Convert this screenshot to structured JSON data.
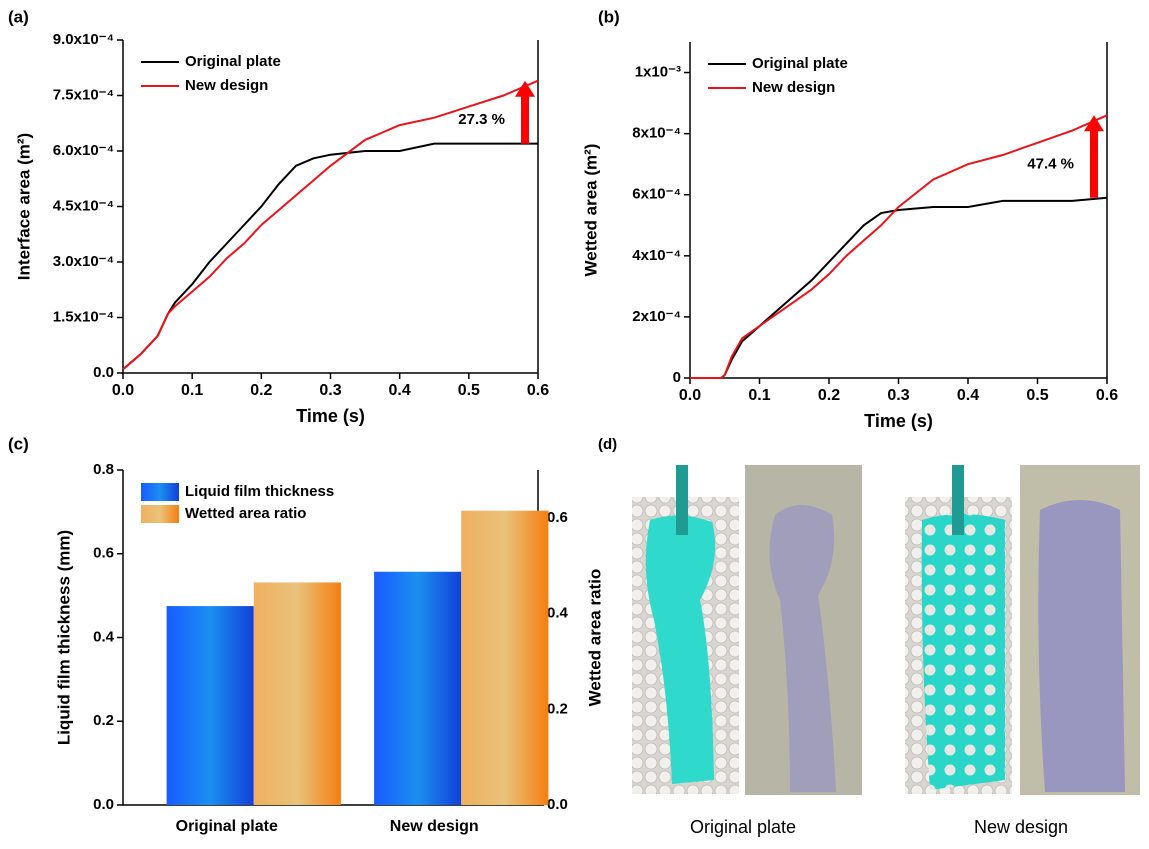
{
  "chart_data": [
    {
      "type": "line",
      "panel_label": "(a)",
      "x_label": "Time (s)",
      "y_label": "Interface area (m²)",
      "annotation": "27.3 %",
      "x": [
        0,
        0.025,
        0.05,
        0.065,
        0.075,
        0.1,
        0.125,
        0.15,
        0.175,
        0.2,
        0.225,
        0.25,
        0.275,
        0.3,
        0.35,
        0.4,
        0.45,
        0.5,
        0.55,
        0.6
      ],
      "series": [
        {
          "name": "Original plate",
          "color": "#000000",
          "values": [
            1e-05,
            5e-05,
            0.0001,
            0.00016,
            0.00019,
            0.00024,
            0.0003,
            0.00035,
            0.0004,
            0.00045,
            0.00051,
            0.00056,
            0.00058,
            0.00059,
            0.0006,
            0.0006,
            0.00062,
            0.00062,
            0.00062,
            0.00062
          ]
        },
        {
          "name": "New design",
          "color": "#e8141b",
          "values": [
            1e-05,
            5e-05,
            0.0001,
            0.00016,
            0.00018,
            0.00022,
            0.00026,
            0.00031,
            0.00035,
            0.0004,
            0.00044,
            0.00048,
            0.00052,
            0.00056,
            0.00063,
            0.00067,
            0.00069,
            0.00072,
            0.00075,
            0.00079
          ]
        }
      ],
      "xlim": [
        0,
        0.6
      ],
      "xticks": [
        {
          "value": 0,
          "label": "0.0"
        },
        0.1,
        0.2,
        0.3,
        0.4,
        0.5,
        0.6
      ],
      "ylim": [
        0,
        0.0009
      ],
      "yticks": [
        {
          "value": 0,
          "label": "0.0"
        },
        {
          "value": 0.00015,
          "label": "1.5x10⁻⁴"
        },
        {
          "value": 0.0003,
          "label": "3.0x10⁻⁴"
        },
        {
          "value": 0.00045,
          "label": "4.5x10⁻⁴"
        },
        {
          "value": 0.0006,
          "label": "6.0x10⁻⁴"
        },
        {
          "value": 0.00075,
          "label": "7.5x10⁻⁴"
        },
        {
          "value": 0.0009,
          "label": "9.0x10⁻⁴"
        }
      ],
      "legend": "upper left",
      "arrow_color": "#ff0000"
    },
    {
      "type": "line",
      "panel_label": "(b)",
      "x_label": "Time (s)",
      "y_label": "Wetted area (m²)",
      "annotation": "47.4 %",
      "x": [
        0,
        0.025,
        0.045,
        0.05,
        0.06,
        0.075,
        0.1,
        0.125,
        0.15,
        0.175,
        0.2,
        0.225,
        0.25,
        0.275,
        0.3,
        0.35,
        0.4,
        0.45,
        0.5,
        0.55,
        0.6
      ],
      "series": [
        {
          "name": "Original plate",
          "color": "#000000",
          "values": [
            0,
            0,
            0,
            1e-05,
            6e-05,
            0.00012,
            0.00017,
            0.00022,
            0.00027,
            0.00032,
            0.00038,
            0.00044,
            0.0005,
            0.00054,
            0.00055,
            0.00056,
            0.00056,
            0.00058,
            0.00058,
            0.00058,
            0.00059
          ]
        },
        {
          "name": "New design",
          "color": "#e8141b",
          "values": [
            0,
            0,
            0,
            1e-05,
            7e-05,
            0.00013,
            0.00017,
            0.00021,
            0.00025,
            0.00029,
            0.00034,
            0.0004,
            0.00045,
            0.0005,
            0.00056,
            0.00065,
            0.0007,
            0.00073,
            0.00077,
            0.00081,
            0.00086
          ]
        }
      ],
      "xlim": [
        0,
        0.6
      ],
      "xticks": [
        {
          "value": 0,
          "label": "0.0"
        },
        0.1,
        0.2,
        0.3,
        0.4,
        0.5,
        0.6
      ],
      "ylim": [
        0,
        0.0011
      ],
      "yticks": [
        0,
        {
          "value": 0.0002,
          "label": "2x10⁻⁴"
        },
        {
          "value": 0.0004,
          "label": "4x10⁻⁴"
        },
        {
          "value": 0.0006,
          "label": "6x10⁻⁴"
        },
        {
          "value": 0.0008,
          "label": "8x10⁻⁴"
        },
        {
          "value": 0.001,
          "label": "1x10⁻³"
        }
      ],
      "legend": "upper left",
      "arrow_color": "#ff0000"
    },
    {
      "type": "bar",
      "panel_label": "(c)",
      "y_label": "Liquid film thickness (mm)",
      "y2_label": "Wetted area ratio",
      "categories": [
        "Original plate",
        "New design"
      ],
      "series": [
        {
          "name": "Liquid film thickness",
          "color": "#1a6cf0",
          "values": [
            0.475,
            0.557
          ]
        },
        {
          "name": "Wetted area ratio",
          "color": "#f5891e",
          "axis": "y2",
          "values": [
            0.465,
            0.615
          ]
        }
      ],
      "ylim": [
        0,
        0.8
      ],
      "yticks": [
        {
          "value": 0,
          "label": "0.0"
        },
        0.2,
        0.4,
        0.6,
        0.8
      ],
      "y2lim": [
        0,
        0.7
      ],
      "y2ticks": [
        {
          "value": 0,
          "label": "0.0"
        },
        0.2,
        0.4,
        0.6
      ],
      "legend": "upper left"
    }
  ],
  "panel_d": {
    "panel_label": "(d)",
    "captions": [
      "Original plate",
      "New design"
    ]
  }
}
